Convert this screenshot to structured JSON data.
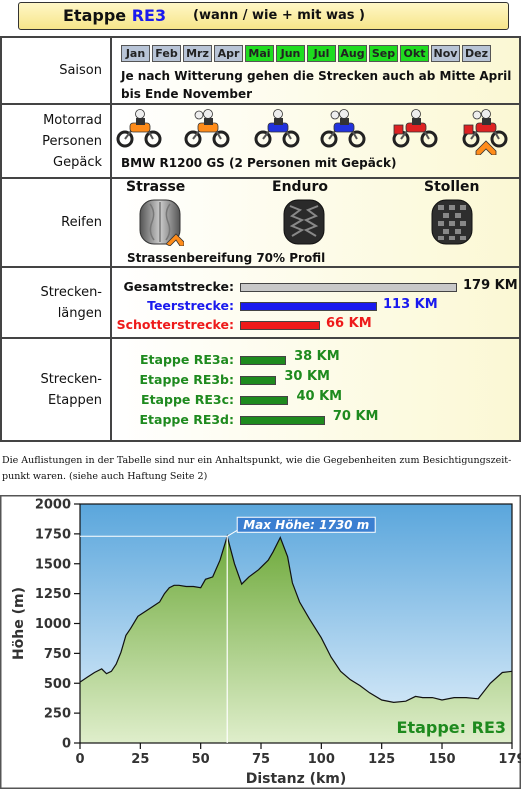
{
  "header": {
    "title_prefix": "Etappe",
    "title_code": "RE3",
    "subtitle": "(wann / wie + mit was )"
  },
  "saison": {
    "label": "Saison",
    "months": [
      {
        "name": "Jan",
        "active": false
      },
      {
        "name": "Feb",
        "active": false
      },
      {
        "name": "Mrz",
        "active": false
      },
      {
        "name": "Apr",
        "active": false
      },
      {
        "name": "Mai",
        "active": true
      },
      {
        "name": "Jun",
        "active": true
      },
      {
        "name": "Jul",
        "active": true
      },
      {
        "name": "Aug",
        "active": true
      },
      {
        "name": "Sep",
        "active": true
      },
      {
        "name": "Okt",
        "active": true
      },
      {
        "name": "Nov",
        "active": false
      },
      {
        "name": "Dez",
        "active": false
      }
    ],
    "text_line1": "Je nach Witterung gehen die Strecken auch ab Mitte April",
    "text_line2": "bis Ende November"
  },
  "motorrad": {
    "label_line1": "Motorrad",
    "label_line2": "Personen",
    "label_line3": "Gepäck",
    "text": "BMW R1200 GS  (2 Personen mit Gepäck)",
    "selected_index": 5
  },
  "reifen": {
    "label": "Reifen",
    "types": [
      "Strasse",
      "Enduro",
      "Stollen"
    ],
    "selected_index": 0,
    "text": "Strassenbereifung  70% Profil"
  },
  "laengen": {
    "label_line1": "Strecken-",
    "label_line2": "längen",
    "items": [
      {
        "label": "Gesamtstrecke:",
        "value": 179,
        "text": "179 KM",
        "color": "#c8c8c8",
        "label_color": "#111111",
        "value_color": "#111111"
      },
      {
        "label": "Teerstrecke:",
        "value": 113,
        "text": "113 KM",
        "color": "#1a1aee",
        "label_color": "#1a1aee",
        "value_color": "#1a1aee"
      },
      {
        "label": "Schotterstrecke:",
        "value": 66,
        "text": "66 KM",
        "color": "#ee1a1a",
        "label_color": "#ee1a1a",
        "value_color": "#ee1a1a"
      }
    ]
  },
  "etappen": {
    "label_line1": "Strecken-",
    "label_line2": "Etappen",
    "items": [
      {
        "label": "Etappe RE3a:",
        "value": 38,
        "text": "38 KM"
      },
      {
        "label": "Etappe RE3b:",
        "value": 30,
        "text": "30 KM"
      },
      {
        "label": "Etappe RE3c:",
        "value": 40,
        "text": "40 KM"
      },
      {
        "label": "Etappe RE3d:",
        "value": 70,
        "text": "70 KM"
      }
    ],
    "color": "#1e8a1e"
  },
  "note": {
    "line1": "Die Auflistungen in der Tabelle sind nur ein Anhaltspunkt, wie die Gegebenheiten zum Besichtigungszeit-",
    "line2": "punkt waren. (siehe auch Haftung Seite 2)"
  },
  "chart_data": {
    "type": "area",
    "ylabel": "Höhe  (m)",
    "xlabel": "Distanz  (km)",
    "xlim": [
      0,
      179
    ],
    "ylim": [
      0,
      2000
    ],
    "xticks": [
      "0",
      "25",
      "50",
      "75",
      "100",
      "125",
      "150",
      "179"
    ],
    "yticks": [
      "0",
      "250",
      "500",
      "750",
      "1000",
      "1250",
      "1500",
      "1750",
      "2000"
    ],
    "annotation": "Max Höhe: 1730 m",
    "max_x": 61,
    "max_y": 1730,
    "watermark": "Etappe: RE3",
    "x": [
      0,
      3,
      6,
      9,
      11,
      13,
      15,
      17,
      19,
      21,
      24,
      27,
      30,
      33,
      35,
      37,
      39,
      41,
      44,
      47,
      50,
      52,
      55,
      58,
      61,
      64,
      67,
      70,
      74,
      78,
      80,
      83,
      86,
      88,
      91,
      95,
      100,
      104,
      108,
      112,
      116,
      120,
      125,
      130,
      135,
      139,
      142,
      146,
      150,
      155,
      160,
      165,
      170,
      175,
      179
    ],
    "y": [
      510,
      550,
      590,
      620,
      580,
      600,
      660,
      760,
      900,
      960,
      1060,
      1100,
      1140,
      1180,
      1250,
      1300,
      1320,
      1320,
      1310,
      1310,
      1300,
      1370,
      1390,
      1530,
      1730,
      1500,
      1330,
      1390,
      1450,
      1530,
      1600,
      1720,
      1560,
      1340,
      1180,
      1040,
      880,
      720,
      600,
      530,
      480,
      420,
      360,
      340,
      350,
      390,
      380,
      380,
      360,
      380,
      380,
      370,
      500,
      590,
      600
    ]
  }
}
